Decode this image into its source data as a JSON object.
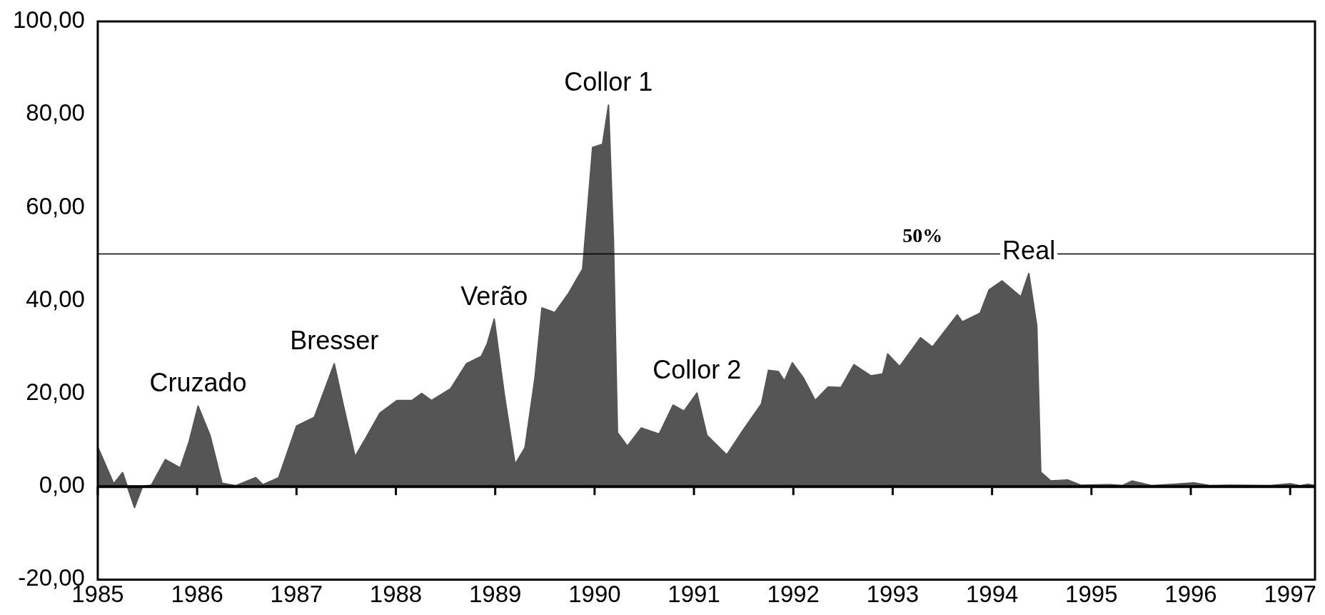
{
  "chart_data": {
    "type": "area",
    "x": [
      1985.0,
      1985.16,
      1985.25,
      1985.37,
      1985.45,
      1985.54,
      1985.68,
      1985.83,
      1985.92,
      1986.01,
      1986.13,
      1986.25,
      1986.39,
      1986.59,
      1986.66,
      1986.82,
      1987.0,
      1987.18,
      1987.38,
      1987.47,
      1987.59,
      1987.84,
      1988.01,
      1988.16,
      1988.26,
      1988.36,
      1988.55,
      1988.71,
      1988.86,
      1988.92,
      1988.99,
      1989.09,
      1989.2,
      1989.3,
      1989.4,
      1989.47,
      1989.6,
      1989.74,
      1989.88,
      1989.98,
      1990.08,
      1990.14,
      1990.19,
      1990.23,
      1990.33,
      1990.47,
      1990.65,
      1990.79,
      1990.9,
      1991.03,
      1991.13,
      1991.33,
      1991.5,
      1991.68,
      1991.75,
      1991.85,
      1991.91,
      1991.99,
      1992.1,
      1992.22,
      1992.35,
      1992.48,
      1992.61,
      1992.78,
      1992.9,
      1992.95,
      1993.07,
      1993.28,
      1993.4,
      1993.65,
      1993.7,
      1993.88,
      1993.97,
      1994.1,
      1994.29,
      1994.37,
      1994.45,
      1994.49,
      1994.59,
      1994.76,
      1994.89,
      1995.19,
      1995.31,
      1995.41,
      1995.61,
      1995.83,
      1996.03,
      1996.2,
      1996.4,
      1996.8,
      1997.0,
      1997.1,
      1997.18,
      1997.25
    ],
    "values": [
      8.5,
      0.6,
      3,
      -4.5,
      0,
      0.3,
      5.8,
      4,
      9.7,
      17.3,
      11,
      0.7,
      0.2,
      1.9,
      0.4,
      1.9,
      13,
      14.9,
      26.4,
      17.6,
      6.4,
      15.8,
      18.5,
      18.5,
      20,
      18.5,
      21,
      26.4,
      28,
      30.7,
      36,
      20,
      4.8,
      8.4,
      23.4,
      38.4,
      37.4,
      41.6,
      46.8,
      72.9,
      73.6,
      82,
      52.7,
      11.6,
      8.7,
      12.6,
      11.3,
      17.5,
      16.2,
      20.1,
      11,
      6.8,
      12.3,
      17.8,
      25,
      24.7,
      22.7,
      26.6,
      23.4,
      18.5,
      21.4,
      21.3,
      26.2,
      23.8,
      24.2,
      28.5,
      25.8,
      32,
      30,
      36.9,
      35.4,
      37.3,
      42.3,
      44.2,
      40.8,
      45.8,
      34.6,
      3.1,
      1.2,
      1.4,
      0.3,
      0.4,
      0.2,
      1.2,
      0.2,
      0.5,
      0.8,
      0.2,
      0.3,
      0.2,
      0.6,
      0.2,
      0.5,
      0.2
    ],
    "color": "#555555",
    "xlim": [
      1985,
      1997.25
    ],
    "xticks": [
      1985,
      1986,
      1987,
      1988,
      1989,
      1990,
      1991,
      1992,
      1993,
      1994,
      1995,
      1996,
      1997
    ],
    "ylim": [
      -20,
      100
    ],
    "yticks": [
      {
        "value": -20,
        "label": "-20,00"
      },
      {
        "value": 0,
        "label": "0,00"
      },
      {
        "value": 20,
        "label": "20,00"
      },
      {
        "value": 40,
        "label": "40,00"
      },
      {
        "value": 60,
        "label": "60,00"
      },
      {
        "value": 80,
        "label": "80,00"
      },
      {
        "value": 100,
        "label": "100,00"
      }
    ],
    "grid": false,
    "legend": false,
    "marker": "none",
    "ref_lines": [
      {
        "axis": "y",
        "value": 0,
        "color": "#000000"
      },
      {
        "axis": "y",
        "value": 50,
        "label": "50%",
        "color": "#000000"
      }
    ],
    "annotations": [
      {
        "text": "Cruzado",
        "x": 1986.01,
        "y": 17.3
      },
      {
        "text": "Bresser",
        "x": 1987.38,
        "y": 26.4
      },
      {
        "text": "Verão",
        "x": 1988.99,
        "y": 36
      },
      {
        "text": "Collor 1",
        "x": 1990.14,
        "y": 82
      },
      {
        "text": "Collor 2",
        "x": 1991.03,
        "y": 20.1
      },
      {
        "text": "Real",
        "x": 1994.37,
        "y": 45.8
      }
    ]
  }
}
